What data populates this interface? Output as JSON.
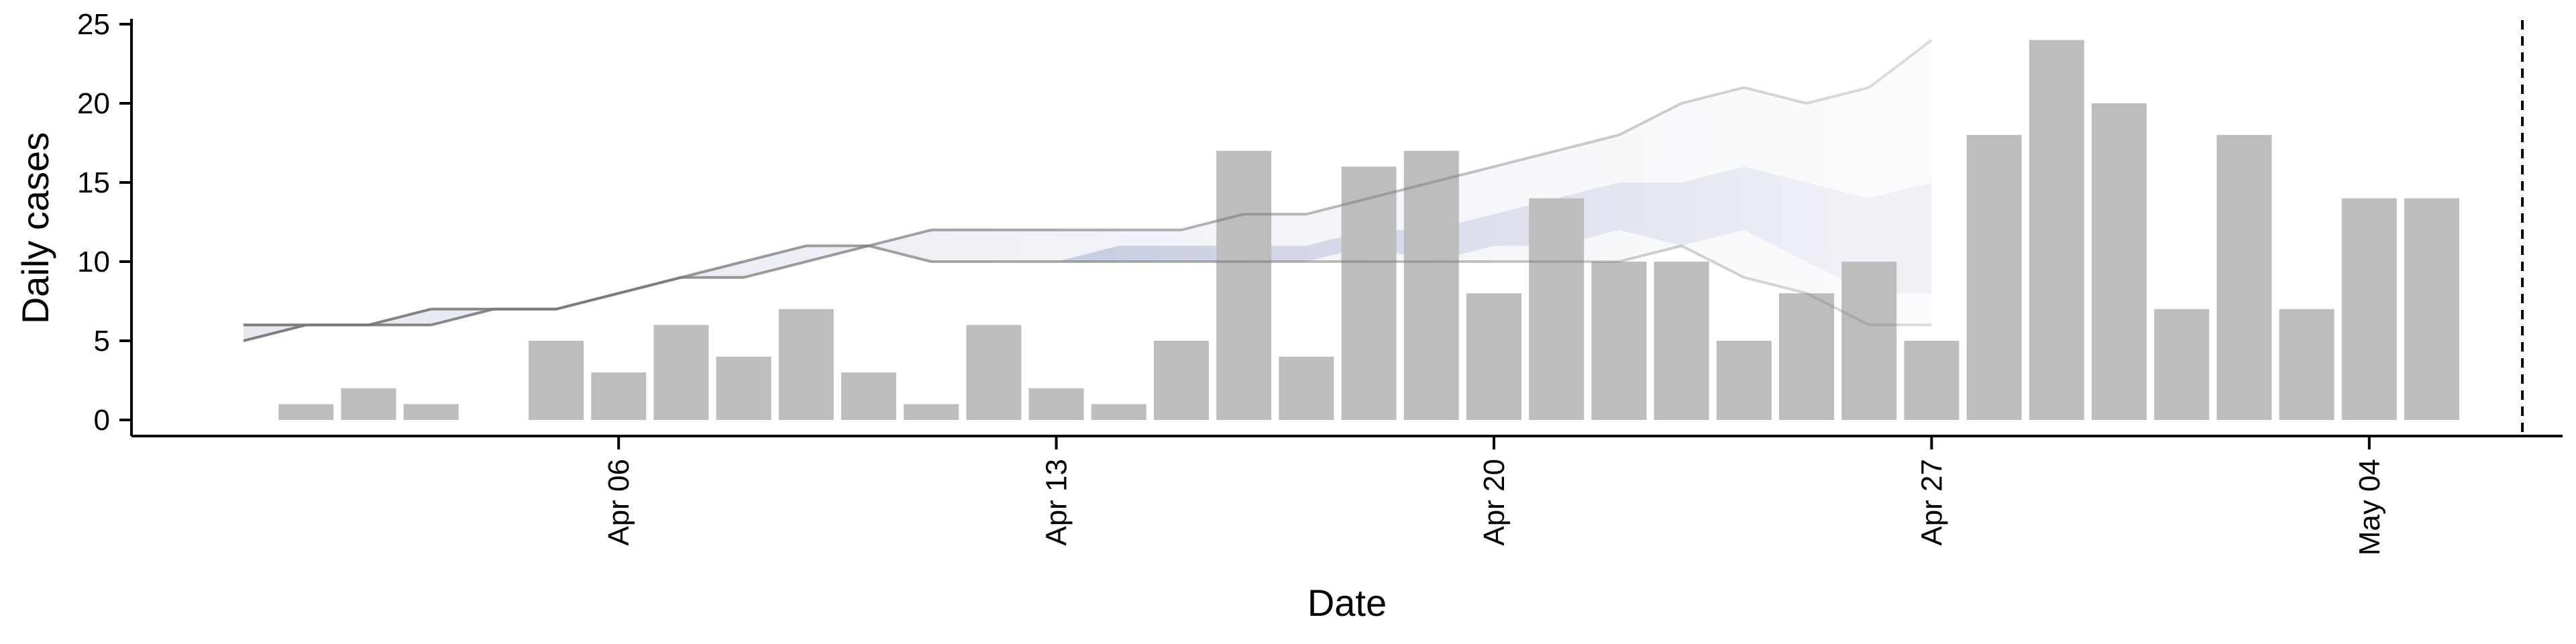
{
  "chart_data": {
    "type": "bar",
    "xlabel": "Date",
    "ylabel": "Daily cases",
    "ylim": [
      0,
      25
    ],
    "y_ticks": [
      0,
      5,
      10,
      15,
      20,
      25
    ],
    "x_ticks": [
      {
        "date": "2020-04-06",
        "label": "Apr 06"
      },
      {
        "date": "2020-04-13",
        "label": "Apr 13"
      },
      {
        "date": "2020-04-20",
        "label": "Apr 20"
      },
      {
        "date": "2020-04-27",
        "label": "Apr 27"
      },
      {
        "date": "2020-05-04",
        "label": "May 04"
      }
    ],
    "xlim": [
      "2020-03-31",
      "2020-05-11"
    ],
    "grid": false,
    "bars": {
      "color": "#bdbdbd",
      "dates": [
        "2020-04-01",
        "2020-04-02",
        "2020-04-03",
        "2020-04-04",
        "2020-04-05",
        "2020-04-06",
        "2020-04-07",
        "2020-04-08",
        "2020-04-09",
        "2020-04-10",
        "2020-04-11",
        "2020-04-12",
        "2020-04-13",
        "2020-04-14",
        "2020-04-15",
        "2020-04-16",
        "2020-04-17",
        "2020-04-18",
        "2020-04-19",
        "2020-04-20",
        "2020-04-21",
        "2020-04-22",
        "2020-04-23",
        "2020-04-24",
        "2020-04-25",
        "2020-04-26",
        "2020-04-27",
        "2020-04-28",
        "2020-04-29",
        "2020-04-30",
        "2020-05-01",
        "2020-05-02",
        "2020-05-03",
        "2020-05-04",
        "2020-05-05",
        "2020-05-06"
      ],
      "values": [
        1,
        2,
        1,
        0,
        5,
        3,
        6,
        4,
        7,
        3,
        1,
        6,
        2,
        1,
        5,
        17,
        4,
        16,
        17,
        8,
        14,
        10,
        10,
        5,
        8,
        10,
        5,
        18,
        24,
        20,
        7,
        18,
        7,
        14,
        14,
        0
      ]
    },
    "outer_band": {
      "dates": [
        "2020-03-31",
        "2020-04-01",
        "2020-04-02",
        "2020-04-03",
        "2020-04-04",
        "2020-04-05",
        "2020-04-06",
        "2020-04-07",
        "2020-04-08",
        "2020-04-09",
        "2020-04-10",
        "2020-04-11",
        "2020-04-12",
        "2020-04-13",
        "2020-04-14",
        "2020-04-15",
        "2020-04-16",
        "2020-04-17",
        "2020-04-18",
        "2020-04-19",
        "2020-04-20",
        "2020-04-21",
        "2020-04-22",
        "2020-04-23",
        "2020-04-24",
        "2020-04-25",
        "2020-04-26",
        "2020-04-27"
      ],
      "lower": [
        5,
        6,
        6,
        6,
        7,
        7,
        8,
        9,
        9,
        10,
        11,
        10,
        10,
        10,
        10,
        10,
        10,
        10,
        10,
        10,
        10,
        10,
        10,
        11,
        9,
        8,
        6,
        6
      ],
      "upper": [
        6,
        6,
        6,
        7,
        7,
        7,
        8,
        9,
        10,
        11,
        11,
        12,
        12,
        12,
        12,
        12,
        13,
        13,
        14,
        15,
        16,
        17,
        18,
        20,
        21,
        20,
        21,
        24
      ],
      "fill": "#c9cde2",
      "line_color": "#777777"
    },
    "inner_band": {
      "dates": [
        "2020-04-13",
        "2020-04-14",
        "2020-04-15",
        "2020-04-16",
        "2020-04-17",
        "2020-04-18",
        "2020-04-19",
        "2020-04-20",
        "2020-04-21",
        "2020-04-22",
        "2020-04-23",
        "2020-04-24",
        "2020-04-25",
        "2020-04-26",
        "2020-04-27"
      ],
      "lower": [
        10,
        10,
        10,
        10,
        10,
        11,
        10,
        11,
        11,
        12,
        11,
        12,
        10,
        8,
        8
      ],
      "upper": [
        10,
        11,
        11,
        11,
        11,
        12,
        12,
        13,
        14,
        15,
        15,
        16,
        15,
        14,
        15
      ],
      "fill": "#8f98c2"
    },
    "vline": {
      "date": "2020-05-06",
      "style": "dashed",
      "color": "#000000"
    }
  }
}
